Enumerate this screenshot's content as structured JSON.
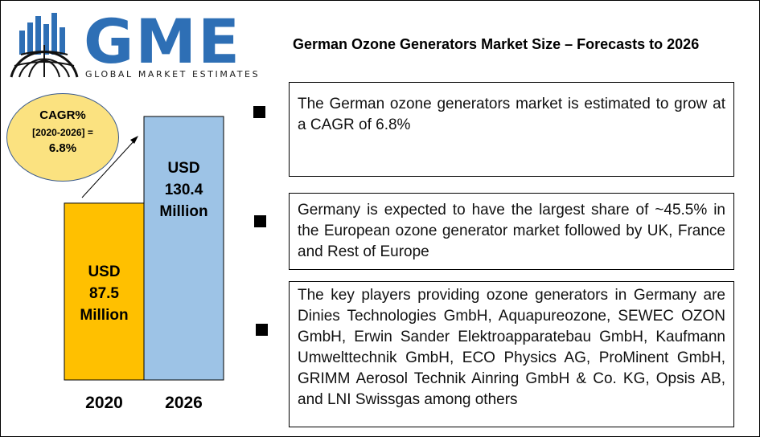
{
  "logo": {
    "text": "GME",
    "subtitle": "GLOBAL MARKET ESTIMATES"
  },
  "title": "German Ozone Generators Market Size – Forecasts to 2026",
  "cagr": {
    "line1": "CAGR%",
    "line2": "[2020-2026] =",
    "line3": "6.8%"
  },
  "chart_data": {
    "type": "bar",
    "categories": [
      "2020",
      "2026"
    ],
    "values": [
      87.5,
      130.4
    ],
    "unit": "USD Million",
    "colors": [
      "#ffc000",
      "#9dc3e6"
    ],
    "value_labels": [
      [
        "USD",
        "87.5",
        "Million"
      ],
      [
        "USD",
        "130.4",
        "Million"
      ]
    ]
  },
  "points": [
    {
      "text": "The German ozone generators market is estimated to grow at a CAGR of 6.8%"
    },
    {
      "text": "Germany is expected to have the largest share of ~45.5% in the European ozone generator market followed by UK, France and Rest of Europe"
    },
    {
      "text": "The key players providing ozone generators in Germany are Dinies Technologies GmbH, Aquapureozone, SEWEC OZON GmbH, Erwin Sander Elektroapparatebau GmbH, Kaufmann Umwelttechnik GmbH, ECO Physics AG, ProMinent GmbH, GRIMM Aerosol Technik Ainring GmbH & Co. KG, Opsis AB, and LNI Swissgas among others"
    }
  ],
  "colors": {
    "logo_blue": "#2e6fb5",
    "cagr_fill": "#fbe280"
  }
}
